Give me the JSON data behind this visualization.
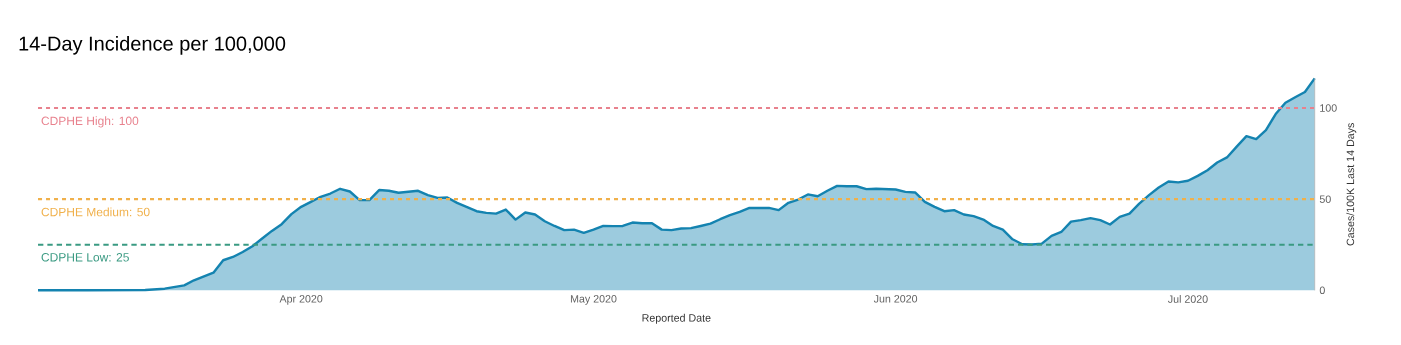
{
  "chart_data": {
    "type": "area",
    "title": "14-Day Incidence per 100,000",
    "xlabel": "Reported Date",
    "ylabel": "Cases/100K Last 14 Days",
    "x": [
      "2020-03-05",
      "2020-03-10",
      "2020-03-16",
      "2020-03-18",
      "2020-03-20",
      "2020-03-21",
      "2020-03-23",
      "2020-03-24",
      "2020-03-25",
      "2020-03-26",
      "2020-03-27",
      "2020-03-28",
      "2020-03-29",
      "2020-03-30",
      "2020-03-31",
      "2020-04-01",
      "2020-04-02",
      "2020-04-03",
      "2020-04-04",
      "2020-04-05",
      "2020-04-06",
      "2020-04-07",
      "2020-04-08",
      "2020-04-09",
      "2020-04-10",
      "2020-04-11",
      "2020-04-13",
      "2020-04-14",
      "2020-04-15",
      "2020-04-16",
      "2020-04-17",
      "2020-04-19",
      "2020-04-20",
      "2020-04-21",
      "2020-04-22",
      "2020-04-23",
      "2020-04-24",
      "2020-04-25",
      "2020-04-26",
      "2020-04-27",
      "2020-04-28",
      "2020-04-29",
      "2020-04-30",
      "2020-05-01",
      "2020-05-02",
      "2020-05-03",
      "2020-05-04",
      "2020-05-05",
      "2020-05-06",
      "2020-05-07",
      "2020-05-08",
      "2020-05-09",
      "2020-05-10",
      "2020-05-11",
      "2020-05-12",
      "2020-05-13",
      "2020-05-14",
      "2020-05-15",
      "2020-05-16",
      "2020-05-17",
      "2020-05-18",
      "2020-05-19",
      "2020-05-20",
      "2020-05-21",
      "2020-05-22",
      "2020-05-23",
      "2020-05-24",
      "2020-05-25",
      "2020-05-26",
      "2020-05-27",
      "2020-05-28",
      "2020-05-29",
      "2020-05-30",
      "2020-05-31",
      "2020-06-01",
      "2020-06-02",
      "2020-06-03",
      "2020-06-04",
      "2020-06-05",
      "2020-06-06",
      "2020-06-07",
      "2020-06-08",
      "2020-06-09",
      "2020-06-10",
      "2020-06-11",
      "2020-06-12",
      "2020-06-13",
      "2020-06-14",
      "2020-06-15",
      "2020-06-16",
      "2020-06-17",
      "2020-06-18",
      "2020-06-19",
      "2020-06-20",
      "2020-06-21",
      "2020-06-22",
      "2020-06-23",
      "2020-06-24",
      "2020-06-25",
      "2020-06-26",
      "2020-06-27",
      "2020-06-28",
      "2020-06-29",
      "2020-06-30",
      "2020-07-01",
      "2020-07-02",
      "2020-07-03",
      "2020-07-04",
      "2020-07-05",
      "2020-07-06",
      "2020-07-07",
      "2020-07-08",
      "2020-07-09",
      "2020-07-10",
      "2020-07-11",
      "2020-07-12",
      "2020-07-13",
      "2020-07-14"
    ],
    "series": [
      {
        "color": "#1483b0",
        "values": [
          0,
          0,
          0.2,
          0.9,
          2.7,
          5.5,
          9.7,
          16.5,
          18.3,
          21,
          24.2,
          28.4,
          32.6,
          36.3,
          41.8,
          45.8,
          48.5,
          51.3,
          53.1,
          55.7,
          54.2,
          49.5,
          49.5,
          55,
          54.6,
          53.5,
          54.6,
          52.2,
          50.7,
          50.9,
          48,
          43.4,
          42.5,
          42.1,
          44.3,
          38.8,
          42.7,
          41.6,
          37.9,
          35.3,
          33,
          33.3,
          31.5,
          33.3,
          35.3,
          35.2,
          35.3,
          37.2,
          36.8,
          36.8,
          33.3,
          33,
          33.9,
          34.1,
          35.3,
          36.6,
          39,
          41.2,
          43,
          45.2,
          45.2,
          45.2,
          44,
          48,
          49.8,
          52.6,
          51.6,
          54.6,
          57.3,
          57.1,
          57.1,
          55.5,
          55.7,
          55.5,
          55.3,
          54,
          53.7,
          48.5,
          45.8,
          43.4,
          44,
          41.6,
          40.7,
          38.8,
          35.3,
          33.3,
          28,
          25.3,
          25.1,
          25.6,
          29.9,
          32,
          37.7,
          38.5,
          39.6,
          38.5,
          36.1,
          40.3,
          42.1,
          47.6,
          52.2,
          56.4,
          59.7,
          59.2,
          60.1,
          62.8,
          65.9,
          70.1,
          72.9,
          78.8,
          84.6,
          83,
          87.9,
          96.7,
          102.9,
          105.9,
          108.8,
          116.3
        ]
      }
    ],
    "xlim": [
      "2020-03-05",
      "2020-07-14"
    ],
    "xticks": [
      {
        "value": "2020-04-01",
        "label": "Apr 2020"
      },
      {
        "value": "2020-05-01",
        "label": "May 2020"
      },
      {
        "value": "2020-06-01",
        "label": "Jun 2020"
      },
      {
        "value": "2020-07-01",
        "label": "Jul 2020"
      }
    ],
    "ylim": [
      0,
      116.3
    ],
    "yticks": [
      0,
      50,
      100
    ],
    "ref_lines": [
      {
        "axis": "y",
        "value": 100,
        "label": "CDPHE High: 100",
        "color": "#e8818d",
        "line_style": "dotted"
      },
      {
        "axis": "y",
        "value": 50,
        "label": "CDPHE Medium: 50",
        "color": "#f0b04a",
        "line_style": "dotted"
      },
      {
        "axis": "y",
        "value": 25,
        "label": "CDPHE Low: 25",
        "color": "#3a9a82",
        "line_style": "dashed"
      }
    ]
  }
}
